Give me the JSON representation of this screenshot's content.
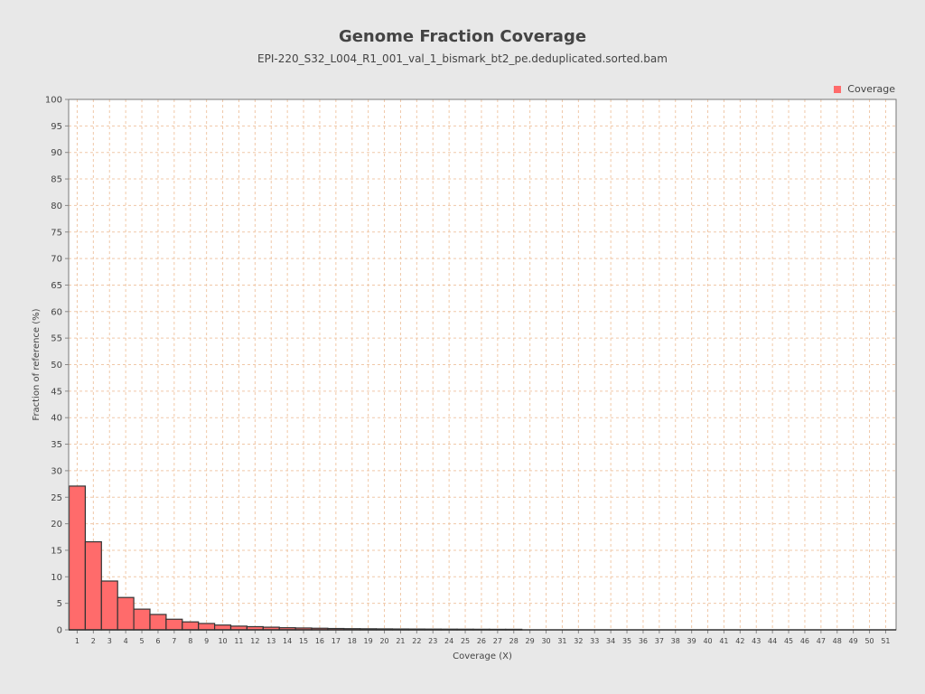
{
  "chart_data": {
    "type": "bar",
    "title": "Genome Fraction Coverage",
    "subtitle": "EPI-220_S32_L004_R1_001_val_1_bismark_bt2_pe.deduplicated.sorted.bam",
    "xlabel": "Coverage (X)",
    "ylabel": "Fraction of reference (%)",
    "ylim": [
      0,
      100
    ],
    "yticks": [
      0,
      5,
      10,
      15,
      20,
      25,
      30,
      35,
      40,
      45,
      50,
      55,
      60,
      65,
      70,
      75,
      80,
      85,
      90,
      95,
      100
    ],
    "categories": [
      "1",
      "2",
      "3",
      "4",
      "5",
      "6",
      "7",
      "8",
      "9",
      "10",
      "11",
      "12",
      "13",
      "14",
      "15",
      "16",
      "17",
      "18",
      "19",
      "20",
      "21",
      "22",
      "23",
      "24",
      "25",
      "26",
      "27",
      "28",
      "29",
      "30",
      "31",
      "32",
      "33",
      "34",
      "35",
      "36",
      "37",
      "38",
      "39",
      "40",
      "41",
      "42",
      "43",
      "44",
      "45",
      "46",
      "47",
      "48",
      "49",
      "50",
      "51"
    ],
    "series": [
      {
        "name": "Coverage",
        "color": "#ff6b6b",
        "values": [
          27.1,
          16.6,
          9.2,
          6.1,
          3.9,
          2.9,
          2.0,
          1.5,
          1.2,
          0.9,
          0.7,
          0.6,
          0.5,
          0.4,
          0.35,
          0.3,
          0.25,
          0.22,
          0.2,
          0.18,
          0.16,
          0.15,
          0.14,
          0.13,
          0.12,
          0.11,
          0.1,
          0.1,
          0,
          0,
          0,
          0,
          0,
          0,
          0,
          0,
          0,
          0,
          0,
          0,
          0,
          0,
          0,
          0,
          0,
          0,
          0,
          0,
          0,
          0,
          0
        ]
      }
    ],
    "grid": true,
    "legend_position": "top-right"
  }
}
